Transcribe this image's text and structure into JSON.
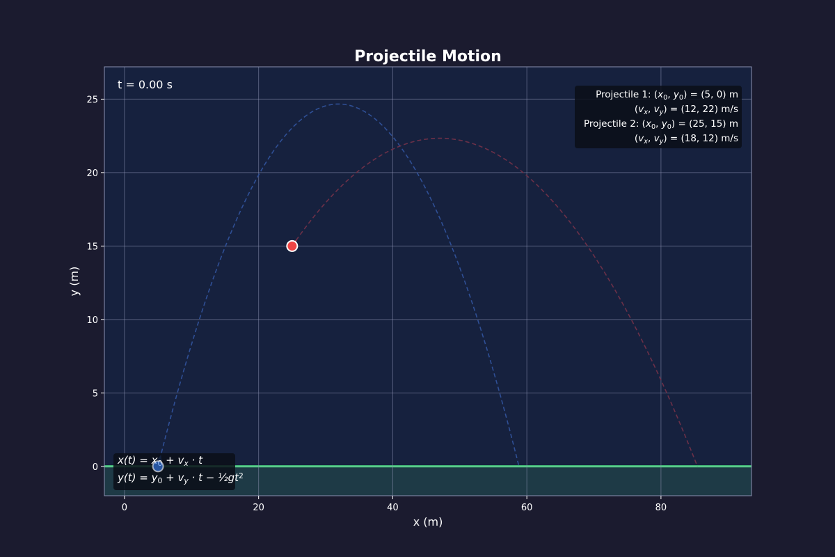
{
  "chart_data": {
    "type": "line",
    "title": "Projectile Motion",
    "xlabel": "x (m)",
    "ylabel": "y (m)",
    "xlim": [
      -3,
      93.5
    ],
    "ylim": [
      -2,
      27.2
    ],
    "xticks": [
      0,
      20,
      40,
      60,
      80
    ],
    "yticks": [
      0,
      5,
      10,
      15,
      20,
      25
    ],
    "grid": true,
    "gravity": 9.81,
    "time_label": "t = 0.00 s",
    "info_lines": [
      {
        "segments": [
          {
            "t": "Projectile 1: ("
          },
          {
            "t": "x",
            "i": true
          },
          {
            "t": "0",
            "sub": true
          },
          {
            "t": ", "
          },
          {
            "t": "y",
            "i": true
          },
          {
            "t": "0",
            "sub": true
          },
          {
            "t": ") = (5, 0) m"
          }
        ]
      },
      {
        "segments": [
          {
            "t": "("
          },
          {
            "t": "v",
            "i": true
          },
          {
            "t": "x",
            "sub": true,
            "i": true
          },
          {
            "t": ", "
          },
          {
            "t": "v",
            "i": true
          },
          {
            "t": "y",
            "sub": true,
            "i": true
          },
          {
            "t": ") = (12, 22) m/s"
          }
        ]
      },
      {
        "segments": [
          {
            "t": "Projectile 2: ("
          },
          {
            "t": "x",
            "i": true
          },
          {
            "t": "0",
            "sub": true
          },
          {
            "t": ", "
          },
          {
            "t": "y",
            "i": true
          },
          {
            "t": "0",
            "sub": true
          },
          {
            "t": ") = (25, 15) m"
          }
        ]
      },
      {
        "segments": [
          {
            "t": "("
          },
          {
            "t": "v",
            "i": true
          },
          {
            "t": "x",
            "sub": true,
            "i": true
          },
          {
            "t": ", "
          },
          {
            "t": "v",
            "i": true
          },
          {
            "t": "y",
            "sub": true,
            "i": true
          },
          {
            "t": ") = (18, 12) m/s"
          }
        ]
      }
    ],
    "equations": [
      {
        "segments": [
          {
            "t": "x",
            "i": true
          },
          {
            "t": "(",
            "i": true
          },
          {
            "t": "t",
            "i": true
          },
          {
            "t": ") = ",
            "i": true
          },
          {
            "t": "x",
            "i": true
          },
          {
            "t": "0",
            "sub": true
          },
          {
            "t": " + ",
            "i": true
          },
          {
            "t": "v",
            "i": true
          },
          {
            "t": "x",
            "sub": true,
            "i": true
          },
          {
            "t": " · ",
            "i": true
          },
          {
            "t": "t",
            "i": true
          }
        ]
      },
      {
        "segments": [
          {
            "t": "y",
            "i": true
          },
          {
            "t": "(",
            "i": true
          },
          {
            "t": "t",
            "i": true
          },
          {
            "t": ") = ",
            "i": true
          },
          {
            "t": "y",
            "i": true
          },
          {
            "t": "0",
            "sub": true
          },
          {
            "t": " + ",
            "i": true
          },
          {
            "t": "v",
            "i": true
          },
          {
            "t": "y",
            "sub": true,
            "i": true
          },
          {
            "t": " · ",
            "i": true
          },
          {
            "t": "t",
            "i": true
          },
          {
            "t": " − ",
            "i": true
          },
          {
            "t": "½",
            "i": true
          },
          {
            "t": "g",
            "i": true
          },
          {
            "t": "t",
            "i": true
          },
          {
            "t": "2",
            "sup": true
          }
        ]
      }
    ],
    "series": [
      {
        "x0": 5,
        "y0": 0,
        "vx": 12,
        "vy": 22,
        "color": "#3b82f6",
        "trail_color": "#2f4f95"
      },
      {
        "x0": 25,
        "y0": 15,
        "vx": 18,
        "vy": 12,
        "color": "#ef4444",
        "trail_color": "#6b3048"
      }
    ],
    "colors": {
      "plot_bg": "#16213e",
      "ground": "#4ade80",
      "ground_fill": "#1e3a46",
      "grid": "#8a90b0",
      "box_bg": "#0a0e18"
    }
  }
}
